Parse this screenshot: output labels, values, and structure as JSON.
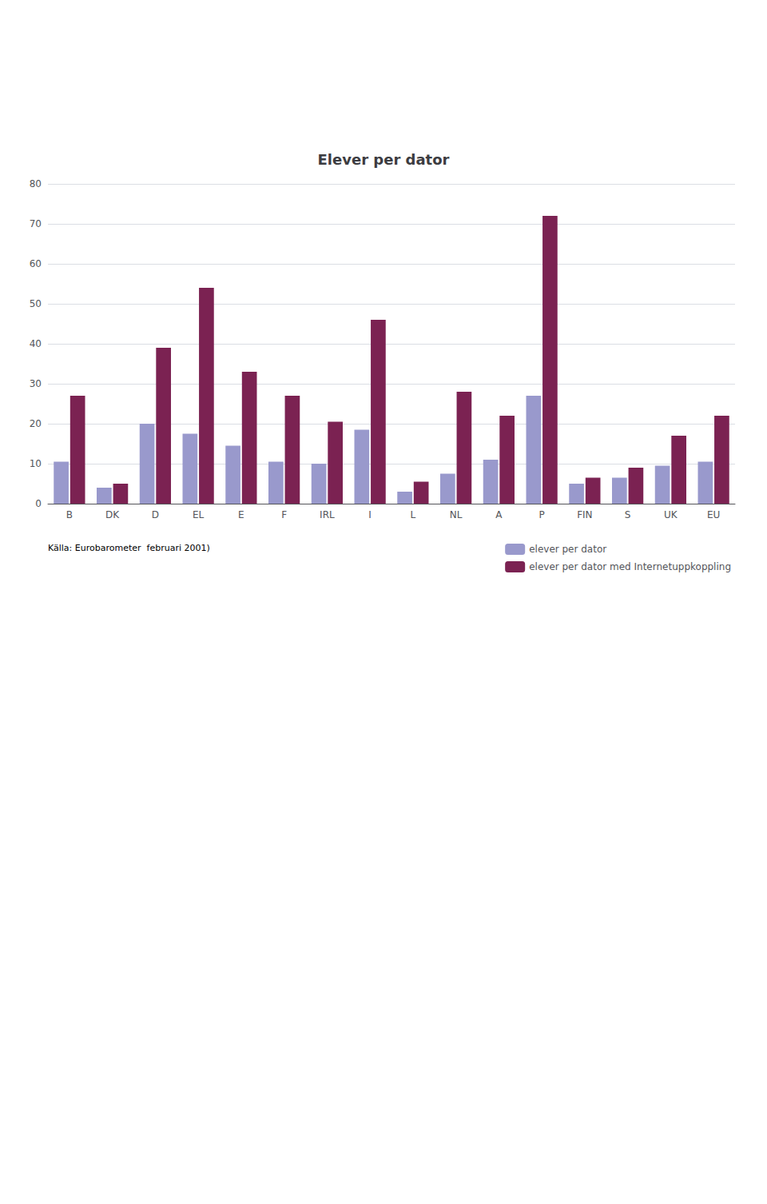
{
  "chart_data": {
    "type": "bar",
    "title": "Elever per dator",
    "categories": [
      "B",
      "DK",
      "D",
      "EL",
      "E",
      "F",
      "IRL",
      "I",
      "L",
      "NL",
      "A",
      "P",
      "FIN",
      "S",
      "UK",
      "EU"
    ],
    "series": [
      {
        "name": "elever per dator",
        "color": "#9999cc",
        "values": [
          10.5,
          4.0,
          20.0,
          17.5,
          14.5,
          10.5,
          10.0,
          18.5,
          3.0,
          7.5,
          11.0,
          27.0,
          5.0,
          6.5,
          9.5,
          10.5
        ]
      },
      {
        "name": "elever per dator med Internetuppkoppling",
        "color": "#7b2252",
        "values": [
          27.0,
          5.0,
          39.0,
          54.0,
          33.0,
          27.0,
          20.5,
          46.0,
          5.5,
          28.0,
          22.0,
          72.0,
          6.5,
          9.0,
          17.0,
          22.0
        ]
      }
    ],
    "ylim": [
      0,
      80
    ],
    "yticks": [
      0,
      10,
      20,
      30,
      40,
      50,
      60,
      70,
      80
    ],
    "grid": true,
    "legend": "lower right",
    "annotations": [
      "Källa: Eurobarometer  februari 2001)"
    ]
  }
}
